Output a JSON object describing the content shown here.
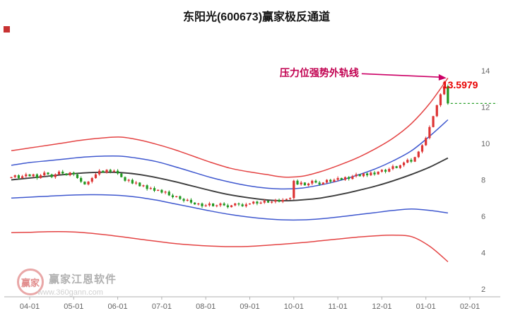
{
  "meta": {
    "title": "东阳光(600673)赢家极反通道"
  },
  "annotation": {
    "text": "压力位强势外轨线",
    "value": "13.5979"
  },
  "watermark": {
    "brand": "赢家江恩软件",
    "url": "www.360gann.com",
    "logo_text": "赢家"
  },
  "chart_data": {
    "type": "candlestick",
    "title": "东阳光(600673)赢家极反通道",
    "xlabel": "",
    "ylabel": "",
    "ylim": [
      2,
      14.5
    ],
    "grid": false,
    "legend": false,
    "x_labels": [
      "04-01",
      "05-01",
      "06-01",
      "07-01",
      "08-01",
      "09-01",
      "10-01",
      "11-01",
      "12-01",
      "01-01",
      "02-01"
    ],
    "y_ticks": [
      14,
      12,
      10,
      8,
      6,
      4,
      2
    ],
    "candles_per_month": 12,
    "lead_candles": 5,
    "closes": [
      8.15,
      8.25,
      8.1,
      8.2,
      8.3,
      8.2,
      8.3,
      8.1,
      8.25,
      8.4,
      8.3,
      8.15,
      8.3,
      8.45,
      8.35,
      8.25,
      8.4,
      8.3,
      8.1,
      7.9,
      7.75,
      7.9,
      8.1,
      8.3,
      8.5,
      8.4,
      8.55,
      8.45,
      8.5,
      8.35,
      8.15,
      7.95,
      8.0,
      7.8,
      7.85,
      7.65,
      7.7,
      7.5,
      7.55,
      7.4,
      7.45,
      7.3,
      7.35,
      7.15,
      7.05,
      7.1,
      6.95,
      6.85,
      6.9,
      6.75,
      6.65,
      6.7,
      6.55,
      6.6,
      6.7,
      6.55,
      6.6,
      6.7,
      6.6,
      6.5,
      6.6,
      6.7,
      6.65,
      6.55,
      6.65,
      6.7,
      6.8,
      6.7,
      6.75,
      6.85,
      6.75,
      6.8,
      6.9,
      6.8,
      6.9,
      6.95,
      7.0,
      7.95,
      7.75,
      7.85,
      7.7,
      7.8,
      7.95,
      7.85,
      7.75,
      7.85,
      8.0,
      7.9,
      8.0,
      8.1,
      8.0,
      8.15,
      8.05,
      8.2,
      8.3,
      8.2,
      8.35,
      8.25,
      8.4,
      8.3,
      8.45,
      8.55,
      8.45,
      8.6,
      8.75,
      8.65,
      8.8,
      8.95,
      9.1,
      9.0,
      9.25,
      9.55,
      9.9,
      10.3,
      10.9,
      11.5,
      12.1,
      12.7,
      13.15,
      12.2
    ],
    "channels": {
      "upper_red": [
        9.6,
        9.75,
        9.9,
        10.05,
        10.2,
        10.3,
        10.35,
        10.2,
        9.95,
        9.65,
        9.3,
        8.95,
        8.65,
        8.45,
        8.3,
        8.15,
        8.2,
        8.45,
        8.8,
        9.2,
        9.7,
        10.3,
        11.1,
        12.2,
        13.5979
      ],
      "upper_blue": [
        8.8,
        8.95,
        9.05,
        9.15,
        9.25,
        9.3,
        9.3,
        9.18,
        9.0,
        8.72,
        8.42,
        8.12,
        7.88,
        7.68,
        7.55,
        7.5,
        7.55,
        7.72,
        7.95,
        8.25,
        8.6,
        9.05,
        9.6,
        10.4,
        11.3
      ],
      "middle": [
        8.0,
        8.1,
        8.2,
        8.3,
        8.38,
        8.42,
        8.4,
        8.3,
        8.12,
        7.9,
        7.65,
        7.4,
        7.18,
        7.02,
        6.9,
        6.85,
        6.9,
        7.0,
        7.18,
        7.4,
        7.65,
        7.95,
        8.3,
        8.7,
        9.2
      ],
      "lower_blue": [
        7.0,
        7.05,
        7.1,
        7.15,
        7.18,
        7.18,
        7.14,
        7.04,
        6.88,
        6.68,
        6.48,
        6.28,
        6.1,
        5.96,
        5.86,
        5.8,
        5.8,
        5.86,
        5.96,
        6.08,
        6.2,
        6.32,
        6.4,
        6.32,
        6.18
      ],
      "lower_red": [
        5.1,
        5.12,
        5.15,
        5.15,
        5.1,
        5.0,
        4.88,
        4.75,
        4.62,
        4.5,
        4.42,
        4.36,
        4.33,
        4.34,
        4.4,
        4.47,
        4.55,
        4.65,
        4.75,
        4.85,
        4.92,
        4.96,
        4.88,
        4.35,
        3.5
      ]
    },
    "pressure_line_value": 13.5979,
    "last_close_line": 12.2,
    "colors": {
      "up": "#dd3333",
      "down": "#229922",
      "channel_red": "#e44444",
      "channel_blue": "#3f58cf",
      "channel_mid": "#3d3d3d",
      "last_line": "#2aa02a",
      "arrow": "#cc0066",
      "annotation": "#c10050",
      "value": "#e80000",
      "axis_text": "#666666"
    }
  }
}
